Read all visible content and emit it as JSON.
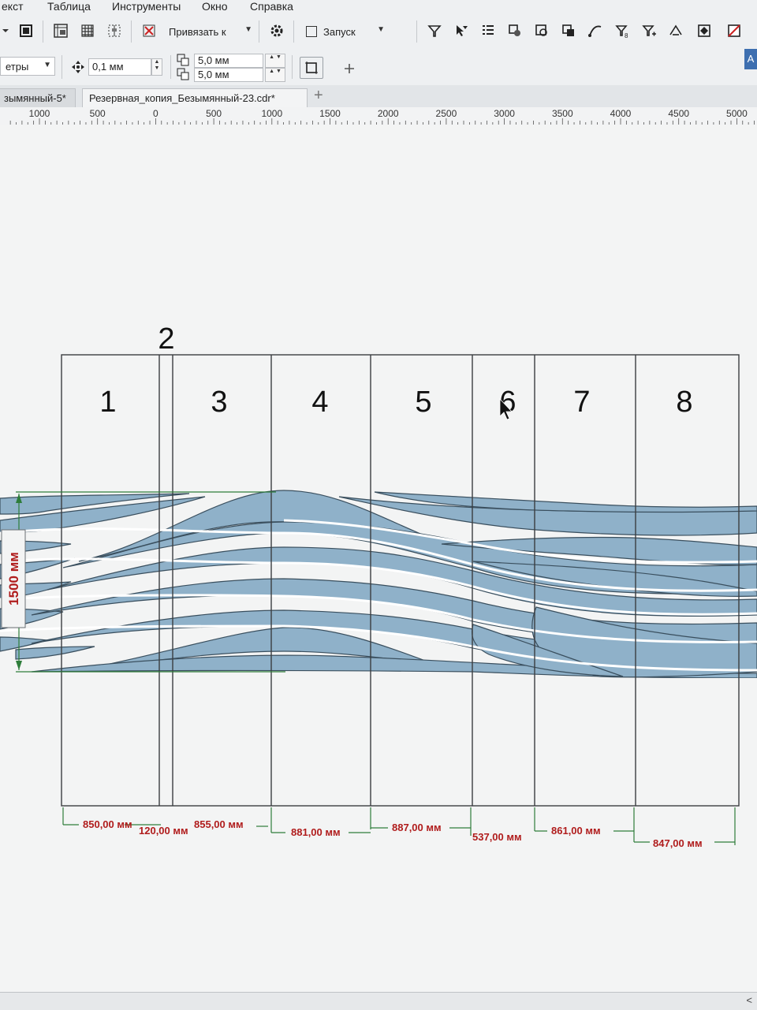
{
  "menu": {
    "items": [
      "екст",
      "Таблица",
      "Инструменты",
      "Окно",
      "Справка"
    ],
    "underline": [
      "",
      "Т",
      "И",
      "О",
      "С"
    ]
  },
  "toolbar1": {
    "snap_label": "Привязать к",
    "launch_label": "Запуск"
  },
  "toolbar2": {
    "units_label": "етры",
    "nudge_value": "0,1 мм",
    "dup_x": "5,0 мм",
    "dup_y": "5,0 мм",
    "right_edge_label": "А"
  },
  "tabs": [
    {
      "label": "зымянный-5*",
      "active": false
    },
    {
      "label": "Резервная_копия_Безымянный-23.cdr*",
      "active": true
    }
  ],
  "add_tab_symbol": "+",
  "ruler": {
    "labels": [
      "1000",
      "500",
      "0",
      "500",
      "1000",
      "1500",
      "2000",
      "2500",
      "3000",
      "3500",
      "4000",
      "4500",
      "5000"
    ]
  },
  "panels": {
    "numbers": [
      "1",
      "2",
      "3",
      "4",
      "5",
      "6",
      "7",
      "8"
    ],
    "widths": [
      "850,00 мм",
      "120,00 мм",
      "855,00 мм",
      "881,00 мм",
      "887,00 мм",
      "537,00 мм",
      "861,00 мм",
      "847,00 мм"
    ],
    "height": "1500 мм"
  },
  "colors": {
    "wave_fill": "#8fb1c9",
    "dimension_red": "#b01c1c",
    "dimension_green": "#2e7d3a"
  },
  "bottom": {
    "scroll_left": "<"
  }
}
